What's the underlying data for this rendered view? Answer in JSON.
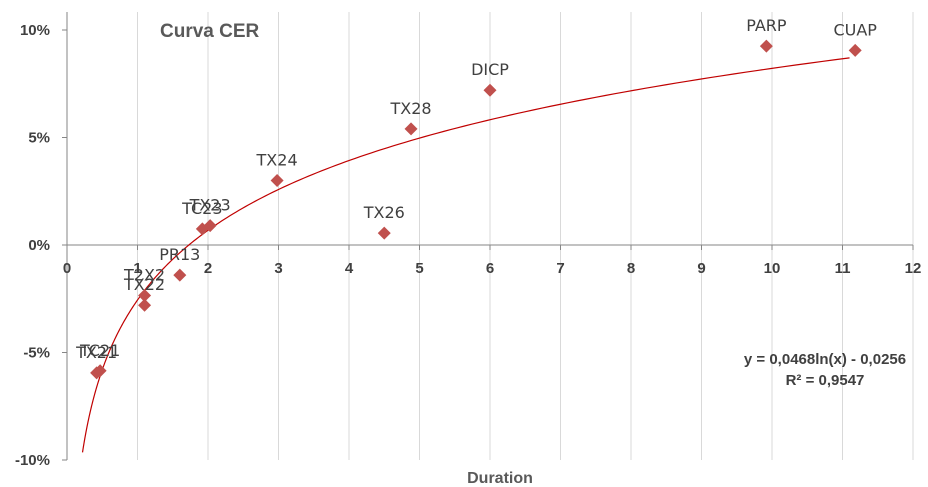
{
  "chart_data": {
    "type": "scatter",
    "title": "Curva CER",
    "xlabel": "Duration",
    "ylabel": "",
    "xlim": [
      0,
      12
    ],
    "ylim": [
      -10,
      10
    ],
    "x_ticks": [
      "0",
      "1",
      "2",
      "3",
      "4",
      "5",
      "6",
      "7",
      "8",
      "9",
      "10",
      "11",
      "12"
    ],
    "y_ticks": [
      "10%",
      "5%",
      "0%",
      "-5%",
      "-10%"
    ],
    "y_tick_values": [
      10,
      5,
      0,
      -5,
      -10
    ],
    "x_tick_values": [
      0,
      1,
      2,
      3,
      4,
      5,
      6,
      7,
      8,
      9,
      10,
      11,
      12
    ],
    "grid": "vertical",
    "marker_color": "#c0504d",
    "trendline_color": "#c00000",
    "points": [
      {
        "label": "TX21",
        "x": 0.42,
        "y": -5.95
      },
      {
        "label": "TC21",
        "x": 0.47,
        "y": -5.85
      },
      {
        "label": "TX22",
        "x": 1.1,
        "y": -2.8
      },
      {
        "label": "T2X2",
        "x": 1.1,
        "y": -2.35
      },
      {
        "label": "PR13",
        "x": 1.6,
        "y": -1.4
      },
      {
        "label": "TC23",
        "x": 1.92,
        "y": 0.75
      },
      {
        "label": "TX23",
        "x": 2.03,
        "y": 0.9
      },
      {
        "label": "TX24",
        "x": 2.98,
        "y": 3.0
      },
      {
        "label": "TX26",
        "x": 4.5,
        "y": 0.55
      },
      {
        "label": "TX28",
        "x": 4.88,
        "y": 5.4
      },
      {
        "label": "DICP",
        "x": 6.0,
        "y": 7.2
      },
      {
        "label": "PARP",
        "x": 9.92,
        "y": 9.25
      },
      {
        "label": "CUAP",
        "x": 11.18,
        "y": 9.05
      }
    ],
    "trendline": {
      "type": "logarithmic",
      "a": 0.0468,
      "b": -0.0256,
      "x_range": [
        0.22,
        11.1
      ],
      "equation": "y = 0,0468ln(x) - 0,0256",
      "r_squared": "R² = 0,9547"
    }
  }
}
